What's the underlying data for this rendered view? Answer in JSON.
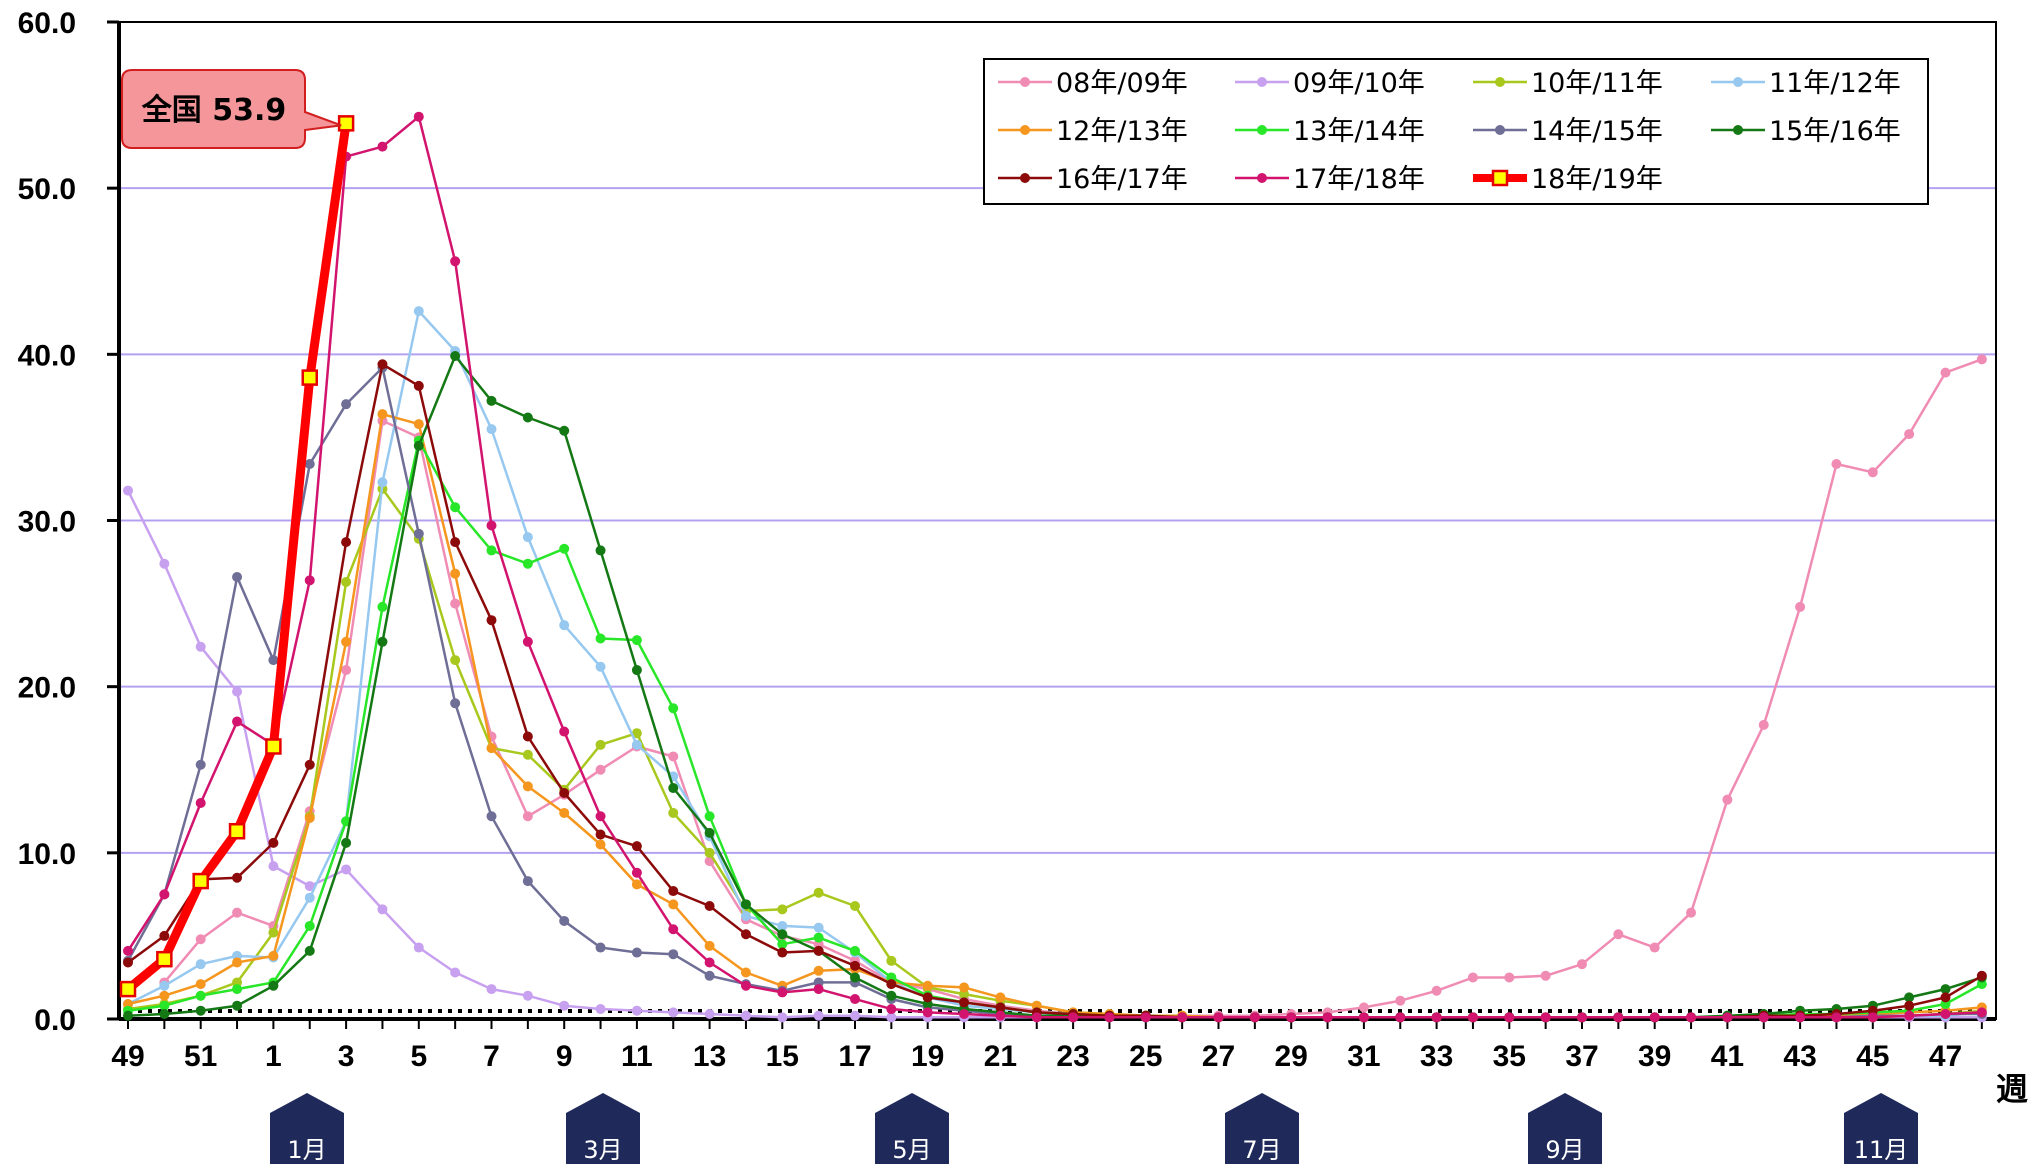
{
  "chart_data": {
    "type": "line",
    "ylim": [
      0,
      60
    ],
    "yticks": [
      "0.0",
      "10.0",
      "20.0",
      "30.0",
      "40.0",
      "50.0",
      "60.0"
    ],
    "xticks": [
      "49",
      "51",
      "1",
      "3",
      "5",
      "7",
      "9",
      "11",
      "13",
      "15",
      "17",
      "19",
      "21",
      "23",
      "25",
      "27",
      "29",
      "31",
      "33",
      "35",
      "37",
      "39",
      "41",
      "43",
      "45",
      "47"
    ],
    "xunit": "週",
    "weeks": [
      49,
      50,
      51,
      52,
      1,
      2,
      3,
      4,
      5,
      6,
      7,
      8,
      9,
      10,
      11,
      12,
      13,
      14,
      15,
      16,
      17,
      18,
      19,
      20,
      21,
      22,
      23,
      24,
      25,
      26,
      27,
      28,
      29,
      30,
      31,
      32,
      33,
      34,
      35,
      36,
      37,
      38,
      39,
      40,
      41,
      42,
      43,
      44,
      45,
      46,
      47,
      48
    ],
    "baseline_label": "",
    "months": [
      "1月",
      "3月",
      "5月",
      "7月",
      "9月",
      "11月"
    ],
    "grid": true,
    "legend_position": "top-right",
    "callout": {
      "label": "全国 53.9",
      "series": "18年/19年",
      "week": 3,
      "value": 53.9
    },
    "series": [
      {
        "name": "08年/09年",
        "color": "#f08cb4",
        "values": [
          null,
          2.2,
          4.8,
          6.4,
          5.6,
          12.5,
          21.0,
          36.0,
          35.0,
          25.0,
          17.0,
          12.2,
          13.5,
          15.0,
          16.4,
          15.8,
          9.5,
          6.0,
          5.0,
          4.5,
          3.5,
          2.2,
          1.8,
          1.2,
          0.8,
          0.5,
          0.3,
          0.2,
          0.2,
          0.2,
          0.2,
          0.2,
          0.3,
          0.4,
          0.7,
          1.1,
          1.7,
          2.5,
          2.5,
          2.6,
          3.3,
          5.1,
          4.3,
          6.4,
          13.2,
          17.7,
          24.8,
          33.4,
          32.9,
          35.2,
          38.9,
          39.7
        ]
      },
      {
        "name": "09年/10年",
        "color": "#c8a0f0",
        "values": [
          31.8,
          27.4,
          22.4,
          19.7,
          9.2,
          8.0,
          9.0,
          6.6,
          4.3,
          2.8,
          1.8,
          1.4,
          0.8,
          0.6,
          0.5,
          0.4,
          0.3,
          0.2,
          0.1,
          0.2,
          0.2,
          0.1,
          0.1,
          0.1,
          0.1,
          0.1,
          0.1,
          0.1,
          0.1,
          0.1,
          0.1,
          0.1,
          0.1,
          0.1,
          0.1,
          0.1,
          0.1,
          0.1,
          0.1,
          0.1,
          0.1,
          0.1,
          0.1,
          0.1,
          0.1,
          0.1,
          0.1,
          0.1,
          0.1,
          0.1,
          0.1,
          0.1
        ]
      },
      {
        "name": "10年/11年",
        "color": "#a8c81e",
        "values": [
          0.6,
          0.9,
          1.4,
          2.2,
          5.2,
          12.2,
          26.3,
          31.9,
          28.9,
          21.6,
          16.3,
          15.9,
          13.8,
          16.5,
          17.2,
          12.4,
          10.0,
          6.5,
          6.6,
          7.6,
          6.8,
          3.5,
          1.9,
          1.5,
          1.1,
          0.8,
          0.4,
          0.3,
          0.2,
          0.1,
          0.1,
          0.1,
          0.1,
          0.1,
          0.1,
          0.1,
          0.1,
          0.1,
          0.1,
          0.1,
          0.1,
          0.1,
          0.1,
          0.1,
          0.1,
          0.1,
          0.1,
          0.1,
          0.1,
          0.2,
          0.3,
          0.5
        ]
      },
      {
        "name": "11年/12年",
        "color": "#96c8f0",
        "values": [
          0.9,
          2.0,
          3.3,
          3.8,
          3.7,
          7.3,
          11.9,
          32.3,
          42.6,
          40.2,
          35.5,
          29.0,
          23.7,
          21.2,
          16.5,
          14.6,
          11.0,
          6.2,
          5.6,
          5.5,
          4.0,
          2.2,
          1.3,
          0.8,
          0.6,
          0.4,
          0.2,
          0.2,
          0.2,
          0.1,
          0.1,
          0.1,
          0.1,
          0.1,
          0.1,
          0.1,
          0.1,
          0.1,
          0.1,
          0.1,
          0.1,
          0.1,
          0.1,
          0.1,
          0.1,
          0.1,
          0.1,
          0.2,
          0.2,
          0.2,
          0.2,
          0.4
        ]
      },
      {
        "name": "12年/13年",
        "color": "#f5961e",
        "values": [
          0.9,
          1.4,
          2.1,
          3.4,
          3.8,
          12.1,
          22.7,
          36.4,
          35.8,
          26.8,
          16.3,
          14.0,
          12.4,
          10.5,
          8.1,
          6.9,
          4.4,
          2.8,
          2.0,
          2.9,
          3.0,
          2.2,
          2.0,
          1.9,
          1.3,
          0.8,
          0.4,
          0.3,
          0.2,
          0.2,
          0.1,
          0.1,
          0.1,
          0.1,
          0.1,
          0.1,
          0.1,
          0.1,
          0.1,
          0.1,
          0.1,
          0.1,
          0.1,
          0.1,
          0.1,
          0.1,
          0.2,
          0.2,
          0.3,
          0.4,
          0.5,
          0.7
        ]
      },
      {
        "name": "13年/14年",
        "color": "#28e628",
        "values": [
          0.5,
          0.8,
          1.4,
          1.8,
          2.2,
          5.6,
          11.9,
          24.8,
          34.8,
          30.8,
          28.2,
          27.4,
          28.3,
          22.9,
          22.8,
          18.7,
          12.2,
          6.9,
          4.5,
          4.9,
          4.1,
          2.5,
          1.4,
          1.0,
          0.7,
          0.4,
          0.3,
          0.2,
          0.2,
          0.1,
          0.1,
          0.1,
          0.1,
          0.1,
          0.1,
          0.1,
          0.1,
          0.1,
          0.1,
          0.1,
          0.1,
          0.1,
          0.1,
          0.1,
          0.1,
          0.2,
          0.3,
          0.3,
          0.4,
          0.5,
          0.9,
          2.1
        ]
      },
      {
        "name": "14年/15年",
        "color": "#6e6e96",
        "values": [
          3.5,
          7.5,
          15.3,
          26.6,
          21.6,
          33.4,
          37.0,
          39.2,
          29.2,
          19.0,
          12.2,
          8.3,
          5.9,
          4.3,
          4.0,
          3.9,
          2.6,
          2.1,
          1.7,
          2.2,
          2.2,
          1.2,
          0.7,
          0.5,
          0.3,
          0.2,
          0.1,
          0.1,
          0.1,
          0.1,
          0.1,
          0.1,
          0.1,
          0.1,
          0.1,
          0.1,
          0.1,
          0.1,
          0.1,
          0.1,
          0.1,
          0.1,
          0.1,
          0.1,
          0.1,
          0.1,
          0.1,
          0.1,
          0.2,
          0.2,
          0.3,
          0.3
        ]
      },
      {
        "name": "15年/16年",
        "color": "#147814",
        "values": [
          0.2,
          0.3,
          0.5,
          0.8,
          2.0,
          4.1,
          10.6,
          22.7,
          34.5,
          39.9,
          37.2,
          36.2,
          35.4,
          28.2,
          21.0,
          13.9,
          11.2,
          6.9,
          5.1,
          4.1,
          2.5,
          1.4,
          0.9,
          0.6,
          0.4,
          0.2,
          0.2,
          0.1,
          0.1,
          0.1,
          0.1,
          0.1,
          0.1,
          0.1,
          0.1,
          0.1,
          0.1,
          0.1,
          0.1,
          0.1,
          0.1,
          0.1,
          0.1,
          0.1,
          0.2,
          0.3,
          0.5,
          0.6,
          0.8,
          1.3,
          1.8,
          2.5
        ]
      },
      {
        "name": "16年/17年",
        "color": "#8c0a0a",
        "values": [
          3.4,
          5.0,
          8.4,
          8.5,
          10.6,
          15.3,
          28.7,
          39.4,
          38.1,
          28.7,
          24.0,
          17.0,
          13.6,
          11.1,
          10.4,
          7.7,
          6.8,
          5.1,
          4.0,
          4.1,
          3.2,
          2.1,
          1.3,
          1.0,
          0.7,
          0.4,
          0.3,
          0.2,
          0.2,
          0.1,
          0.1,
          0.1,
          0.1,
          0.1,
          0.1,
          0.1,
          0.1,
          0.1,
          0.1,
          0.1,
          0.1,
          0.1,
          0.1,
          0.1,
          0.1,
          0.2,
          0.2,
          0.3,
          0.5,
          0.8,
          1.3,
          2.6
        ]
      },
      {
        "name": "17年/18年",
        "color": "#d2146e",
        "values": [
          4.1,
          7.5,
          13.0,
          17.9,
          16.5,
          26.4,
          51.9,
          52.5,
          54.3,
          45.6,
          29.7,
          22.7,
          17.3,
          12.2,
          8.8,
          5.4,
          3.4,
          2.0,
          1.6,
          1.8,
          1.2,
          0.6,
          0.4,
          0.3,
          0.2,
          0.1,
          0.1,
          0.1,
          0.1,
          0.1,
          0.1,
          0.1,
          0.1,
          0.1,
          0.1,
          0.1,
          0.1,
          0.1,
          0.1,
          0.1,
          0.1,
          0.1,
          0.1,
          0.1,
          0.1,
          0.1,
          0.1,
          0.1,
          0.1,
          0.2,
          0.3,
          0.4
        ]
      },
      {
        "name": "18年/19年",
        "color": "#ff0000",
        "highlight": true,
        "values": [
          1.8,
          3.6,
          8.3,
          11.3,
          16.4,
          38.6,
          53.9,
          null,
          null,
          null,
          null,
          null,
          null,
          null,
          null,
          null,
          null,
          null,
          null,
          null,
          null,
          null,
          null,
          null,
          null,
          null,
          null,
          null,
          null,
          null,
          null,
          null,
          null,
          null,
          null,
          null,
          null,
          null,
          null,
          null,
          null,
          null,
          null,
          null,
          null,
          null,
          null,
          null,
          null,
          null,
          null,
          null
        ]
      }
    ]
  }
}
